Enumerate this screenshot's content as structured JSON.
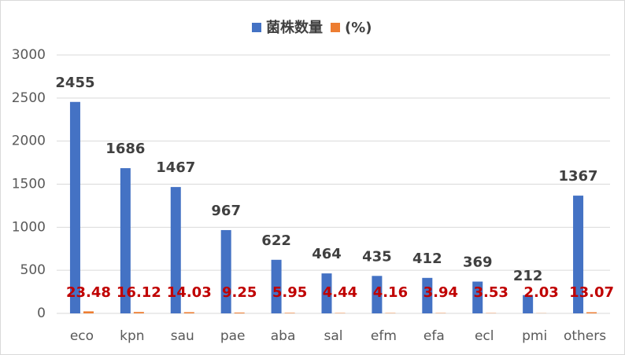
{
  "chart_data": {
    "type": "bar",
    "categories": [
      "eco",
      "kpn",
      "sau",
      "pae",
      "aba",
      "sal",
      "efm",
      "efa",
      "ecl",
      "pmi",
      "others"
    ],
    "series": [
      {
        "name": "菌株数量",
        "color": "#4472c4",
        "values": [
          2455,
          1686,
          1467,
          967,
          622,
          464,
          435,
          412,
          369,
          212,
          1367
        ]
      },
      {
        "name": "(%)",
        "color": "#ed7d31",
        "values": [
          23.48,
          16.12,
          14.03,
          9.25,
          5.95,
          4.44,
          4.16,
          3.94,
          3.53,
          2.03,
          13.07
        ]
      }
    ],
    "ylim": [
      0,
      3000
    ],
    "yticks": [
      0,
      500,
      1000,
      1500,
      2000,
      2500,
      3000
    ],
    "grid": true,
    "legend": "top"
  }
}
